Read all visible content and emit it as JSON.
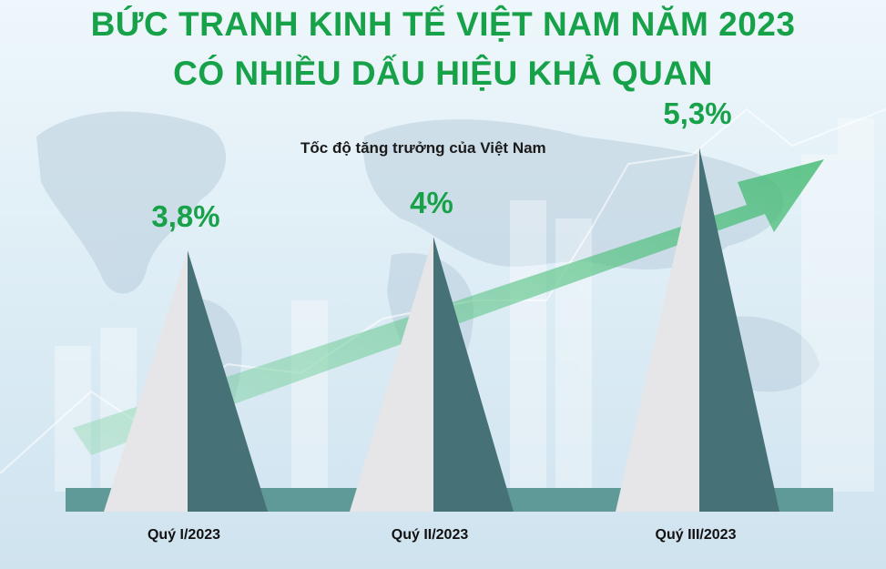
{
  "header": {
    "title_line1": "BỨC TRANH KINH TẾ VIỆT NAM NĂM 2023",
    "title_line2": "CÓ NHIỀU DẤU HIỆU KHẢ QUAN"
  },
  "colors": {
    "title": "#17a24a",
    "value_label": "#17a24a",
    "pyramid_light": "#e6e6e8",
    "pyramid_dark": "#467177",
    "base_bar": "#5f9a98",
    "arrow": "#63c48a"
  },
  "chart_data": {
    "type": "bar",
    "title": "Tốc độ tăng trưởng của Việt Nam",
    "categories": [
      "Quý I/2023",
      "Quý II/2023",
      "Quý III/2023"
    ],
    "values": [
      3.8,
      4,
      5.3
    ],
    "value_labels": [
      "3,8%",
      "4%",
      "5,3%"
    ],
    "unit": "%",
    "xlabel": "",
    "ylabel": "",
    "ylim": [
      0,
      5.3
    ],
    "grid": false,
    "legend": "none"
  }
}
